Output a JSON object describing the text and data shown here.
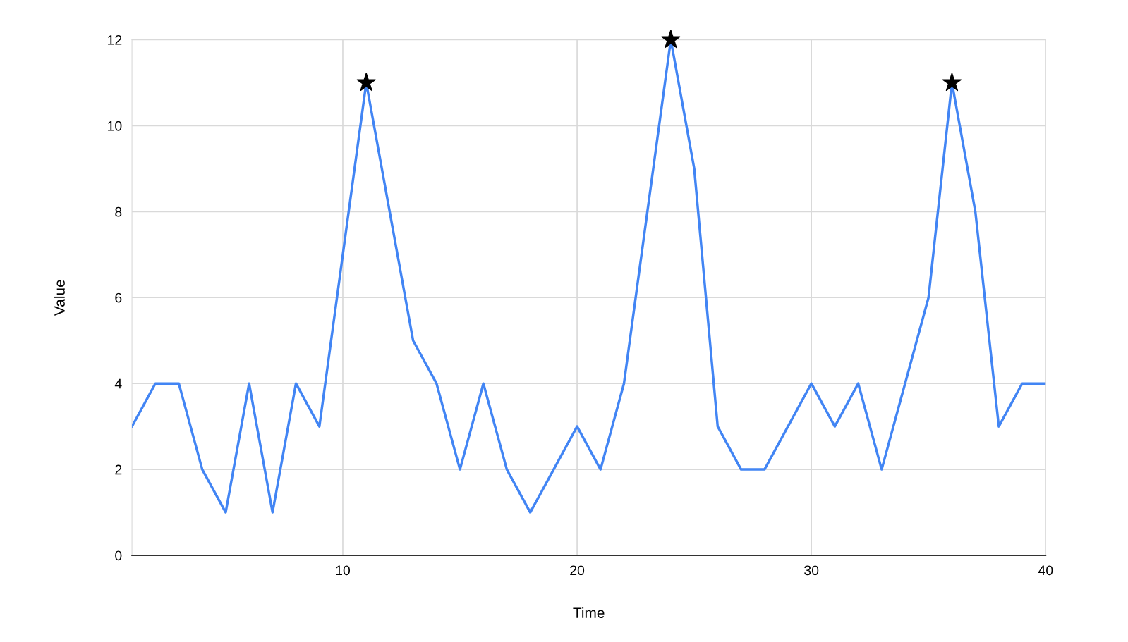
{
  "chart_data": {
    "type": "line",
    "xlabel": "Time",
    "ylabel": "Value",
    "x": [
      1,
      2,
      3,
      4,
      5,
      6,
      7,
      8,
      9,
      10,
      11,
      12,
      13,
      14,
      15,
      16,
      17,
      18,
      19,
      20,
      21,
      22,
      23,
      24,
      25,
      26,
      27,
      28,
      29,
      30,
      31,
      32,
      33,
      34,
      35,
      36,
      37,
      38,
      39,
      40
    ],
    "series": [
      {
        "color": "#4285f4",
        "marker": "none",
        "values": [
          3,
          4,
          4,
          2,
          1,
          4,
          1,
          4,
          3,
          7,
          11,
          8,
          5,
          4,
          2,
          4,
          2,
          1,
          2,
          3,
          2,
          4,
          8,
          12,
          9,
          3,
          2,
          2,
          3,
          4,
          3,
          4,
          2,
          4,
          6,
          11,
          8,
          3,
          4,
          4
        ]
      },
      {
        "type": "scatter",
        "color": "#000000",
        "marker": "star",
        "x": [
          11,
          24,
          36
        ],
        "values": [
          11,
          12,
          11
        ]
      }
    ],
    "xlim": [
      1,
      40
    ],
    "xticks": [
      10,
      20,
      30,
      40
    ],
    "ylim": [
      0,
      12
    ],
    "yticks": [
      0,
      2,
      4,
      6,
      8,
      10,
      12
    ],
    "grid": true,
    "legend": false
  }
}
